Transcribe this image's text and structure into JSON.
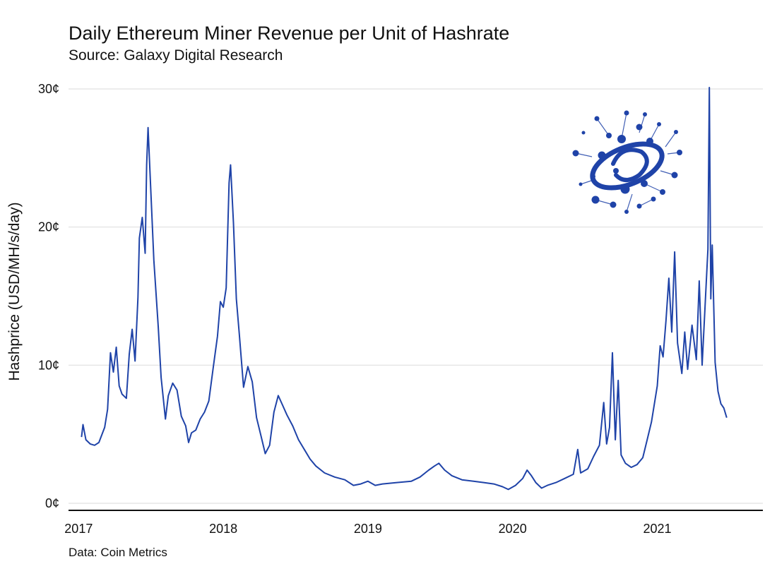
{
  "chart_data": {
    "type": "line",
    "title": "Daily Ethereum Miner Revenue per Unit of Hashrate",
    "subtitle": "Source: Galaxy Digital Research",
    "ylabel": "Hashprice (USD/MH/s/day)",
    "xlabel": "",
    "caption": "Data: Coin Metrics",
    "ylim": [
      0,
      30
    ],
    "xlim": [
      2016.93,
      2021.73
    ],
    "grid": true,
    "line_color": "#1f43a8",
    "y_ticks": [
      {
        "value": 0,
        "label": "0¢"
      },
      {
        "value": 10,
        "label": "10¢"
      },
      {
        "value": 20,
        "label": "20¢"
      },
      {
        "value": 30,
        "label": "30¢"
      }
    ],
    "x_ticks": [
      {
        "value": 2017,
        "label": "2017"
      },
      {
        "value": 2018,
        "label": "2018"
      },
      {
        "value": 2019,
        "label": "2019"
      },
      {
        "value": 2020,
        "label": "2020"
      },
      {
        "value": 2021,
        "label": "2021"
      }
    ],
    "series": [
      {
        "name": "Hashprice (¢)",
        "points": [
          [
            2017.02,
            4.8
          ],
          [
            2017.03,
            5.7
          ],
          [
            2017.05,
            4.6
          ],
          [
            2017.08,
            4.3
          ],
          [
            2017.11,
            4.2
          ],
          [
            2017.14,
            4.4
          ],
          [
            2017.18,
            5.5
          ],
          [
            2017.2,
            6.8
          ],
          [
            2017.22,
            10.9
          ],
          [
            2017.24,
            9.5
          ],
          [
            2017.26,
            11.3
          ],
          [
            2017.28,
            8.5
          ],
          [
            2017.3,
            7.9
          ],
          [
            2017.33,
            7.6
          ],
          [
            2017.35,
            10.8
          ],
          [
            2017.37,
            12.6
          ],
          [
            2017.39,
            10.3
          ],
          [
            2017.41,
            14.9
          ],
          [
            2017.42,
            19.2
          ],
          [
            2017.44,
            20.7
          ],
          [
            2017.46,
            18.1
          ],
          [
            2017.47,
            24.5
          ],
          [
            2017.48,
            27.2
          ],
          [
            2017.5,
            22.4
          ],
          [
            2017.52,
            17.6
          ],
          [
            2017.55,
            12.8
          ],
          [
            2017.57,
            9.1
          ],
          [
            2017.6,
            6.1
          ],
          [
            2017.62,
            7.8
          ],
          [
            2017.65,
            8.7
          ],
          [
            2017.68,
            8.2
          ],
          [
            2017.71,
            6.3
          ],
          [
            2017.74,
            5.6
          ],
          [
            2017.76,
            4.4
          ],
          [
            2017.78,
            5.1
          ],
          [
            2017.81,
            5.3
          ],
          [
            2017.84,
            6.1
          ],
          [
            2017.87,
            6.6
          ],
          [
            2017.9,
            7.4
          ],
          [
            2017.93,
            9.8
          ],
          [
            2017.96,
            12.1
          ],
          [
            2017.98,
            14.6
          ],
          [
            2018.0,
            14.2
          ],
          [
            2018.02,
            15.6
          ],
          [
            2018.04,
            23.2
          ],
          [
            2018.05,
            24.5
          ],
          [
            2018.07,
            20.3
          ],
          [
            2018.09,
            14.8
          ],
          [
            2018.11,
            12.3
          ],
          [
            2018.14,
            8.4
          ],
          [
            2018.17,
            9.9
          ],
          [
            2018.2,
            8.8
          ],
          [
            2018.23,
            6.2
          ],
          [
            2018.26,
            4.9
          ],
          [
            2018.29,
            3.6
          ],
          [
            2018.32,
            4.2
          ],
          [
            2018.35,
            6.6
          ],
          [
            2018.38,
            7.8
          ],
          [
            2018.41,
            7.1
          ],
          [
            2018.44,
            6.4
          ],
          [
            2018.48,
            5.6
          ],
          [
            2018.52,
            4.6
          ],
          [
            2018.56,
            3.9
          ],
          [
            2018.6,
            3.2
          ],
          [
            2018.64,
            2.7
          ],
          [
            2018.7,
            2.2
          ],
          [
            2018.77,
            1.9
          ],
          [
            2018.84,
            1.7
          ],
          [
            2018.9,
            1.3
          ],
          [
            2018.95,
            1.4
          ],
          [
            2019.0,
            1.6
          ],
          [
            2019.05,
            1.3
          ],
          [
            2019.1,
            1.4
          ],
          [
            2019.2,
            1.5
          ],
          [
            2019.3,
            1.6
          ],
          [
            2019.36,
            1.9
          ],
          [
            2019.42,
            2.4
          ],
          [
            2019.46,
            2.7
          ],
          [
            2019.49,
            2.9
          ],
          [
            2019.53,
            2.4
          ],
          [
            2019.58,
            2.0
          ],
          [
            2019.65,
            1.7
          ],
          [
            2019.73,
            1.6
          ],
          [
            2019.8,
            1.5
          ],
          [
            2019.87,
            1.4
          ],
          [
            2019.93,
            1.2
          ],
          [
            2019.97,
            1.0
          ],
          [
            2020.02,
            1.3
          ],
          [
            2020.07,
            1.8
          ],
          [
            2020.1,
            2.4
          ],
          [
            2020.13,
            2.0
          ],
          [
            2020.16,
            1.5
          ],
          [
            2020.2,
            1.1
          ],
          [
            2020.24,
            1.3
          ],
          [
            2020.3,
            1.5
          ],
          [
            2020.36,
            1.8
          ],
          [
            2020.42,
            2.1
          ],
          [
            2020.45,
            3.9
          ],
          [
            2020.47,
            2.2
          ],
          [
            2020.52,
            2.5
          ],
          [
            2020.56,
            3.4
          ],
          [
            2020.6,
            4.2
          ],
          [
            2020.63,
            7.3
          ],
          [
            2020.65,
            4.3
          ],
          [
            2020.67,
            5.5
          ],
          [
            2020.69,
            10.9
          ],
          [
            2020.71,
            4.6
          ],
          [
            2020.73,
            8.9
          ],
          [
            2020.75,
            3.5
          ],
          [
            2020.78,
            2.9
          ],
          [
            2020.82,
            2.6
          ],
          [
            2020.86,
            2.8
          ],
          [
            2020.9,
            3.3
          ],
          [
            2020.93,
            4.6
          ],
          [
            2020.96,
            5.9
          ],
          [
            2021.0,
            8.5
          ],
          [
            2021.02,
            11.4
          ],
          [
            2021.04,
            10.6
          ],
          [
            2021.06,
            13.2
          ],
          [
            2021.08,
            16.3
          ],
          [
            2021.1,
            12.4
          ],
          [
            2021.12,
            18.2
          ],
          [
            2021.14,
            11.6
          ],
          [
            2021.17,
            9.4
          ],
          [
            2021.19,
            12.4
          ],
          [
            2021.21,
            9.7
          ],
          [
            2021.24,
            12.9
          ],
          [
            2021.27,
            10.4
          ],
          [
            2021.29,
            16.1
          ],
          [
            2021.31,
            10.0
          ],
          [
            2021.33,
            14.2
          ],
          [
            2021.35,
            18.4
          ],
          [
            2021.36,
            30.1
          ],
          [
            2021.37,
            14.8
          ],
          [
            2021.38,
            18.7
          ],
          [
            2021.4,
            10.2
          ],
          [
            2021.42,
            8.1
          ],
          [
            2021.44,
            7.2
          ],
          [
            2021.46,
            6.9
          ],
          [
            2021.48,
            6.2
          ]
        ]
      }
    ]
  }
}
